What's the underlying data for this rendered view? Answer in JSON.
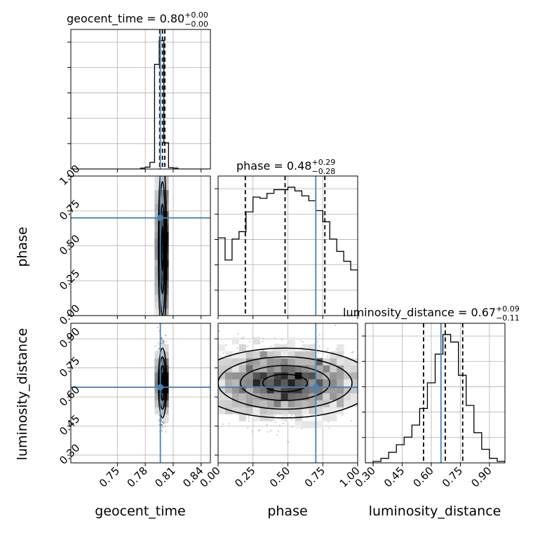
{
  "chart_data": {
    "type": "corner",
    "parameters": [
      "geocent_time",
      "phase",
      "luminosity_distance"
    ],
    "titles": [
      {
        "param": "geocent_time",
        "label": "geocent_time",
        "median": "0.80",
        "plus": "+0.00",
        "minus": "−0.00"
      },
      {
        "param": "phase",
        "label": "phase",
        "median": "0.48",
        "plus": "+0.29",
        "minus": "−0.28"
      },
      {
        "param": "luminosity_distance",
        "label": "luminosity_distance",
        "median": "0.67",
        "plus": "+0.09",
        "minus": "−0.11"
      }
    ],
    "axis_labels": {
      "geocent_time": "geocent_time",
      "phase": "phase",
      "luminosity_distance": "luminosity_distance"
    },
    "ranges": {
      "geocent_time": [
        0.7,
        0.85
      ],
      "phase": [
        0.0,
        1.0
      ],
      "luminosity_distance": [
        0.26,
        0.98
      ]
    },
    "ticks": {
      "geocent_time": {
        "values": [
          0.75,
          0.78,
          0.81,
          0.84
        ],
        "labels": [
          "0.75",
          "0.78",
          "0.81",
          "0.84"
        ]
      },
      "phase": {
        "values": [
          0.0,
          0.25,
          0.5,
          0.75,
          1.0
        ],
        "labels": [
          "0.00",
          "0.25",
          "0.50",
          "0.75",
          "1.00"
        ]
      },
      "luminosity_distance": {
        "values": [
          0.3,
          0.45,
          0.6,
          0.75,
          0.9
        ],
        "labels": [
          "0.30",
          "0.45",
          "0.60",
          "0.75",
          "0.90"
        ]
      }
    },
    "truths": {
      "geocent_time": 0.7962,
      "phase": 0.7,
      "luminosity_distance": 0.65
    },
    "quantiles": {
      "geocent_time": [
        0.7955,
        0.7985,
        0.801
      ],
      "phase": [
        0.195,
        0.48,
        0.765
      ],
      "luminosity_distance": [
        0.56,
        0.672,
        0.762
      ]
    },
    "histograms": {
      "geocent_time": {
        "edges": [
          0.775,
          0.78,
          0.785,
          0.79,
          0.795,
          0.8,
          0.805,
          0.81,
          0.815
        ],
        "counts": [
          0.02,
          0.04,
          0.14,
          2.2,
          2.7,
          0.55,
          0.03,
          0.02
        ]
      },
      "phase": {
        "edges": [
          0.0,
          0.05,
          0.1,
          0.15,
          0.2,
          0.25,
          0.3,
          0.35,
          0.4,
          0.45,
          0.5,
          0.55,
          0.6,
          0.65,
          0.7,
          0.75,
          0.8,
          0.85,
          0.9,
          0.95,
          1.0
        ],
        "counts": [
          0.63,
          0.45,
          0.62,
          0.68,
          0.84,
          0.96,
          0.95,
          0.99,
          1.02,
          1.02,
          1.04,
          1.01,
          0.97,
          0.93,
          0.85,
          0.76,
          0.62,
          0.52,
          0.44,
          0.37
        ]
      },
      "luminosity_distance": {
        "edges": [
          0.26,
          0.3,
          0.34,
          0.38,
          0.42,
          0.46,
          0.5,
          0.54,
          0.58,
          0.62,
          0.66,
          0.7,
          0.74,
          0.78,
          0.82,
          0.86,
          0.9,
          0.94,
          0.98
        ],
        "counts": [
          0.0,
          0.01,
          0.03,
          0.07,
          0.12,
          0.17,
          0.25,
          0.36,
          0.53,
          0.72,
          0.85,
          0.8,
          0.58,
          0.38,
          0.2,
          0.09,
          0.03,
          0.01
        ]
      }
    },
    "contours_2d": [
      {
        "x": "geocent_time",
        "y": "phase",
        "truth": [
          0.7962,
          0.7
        ]
      },
      {
        "x": "geocent_time",
        "y": "luminosity_distance",
        "truth": [
          0.7962,
          0.65
        ]
      },
      {
        "x": "phase",
        "y": "luminosity_distance",
        "truth": [
          0.7,
          0.65
        ]
      }
    ],
    "colors": {
      "truth": "#4682b4",
      "line": "#000000",
      "grid": "#b0b0b0"
    }
  }
}
